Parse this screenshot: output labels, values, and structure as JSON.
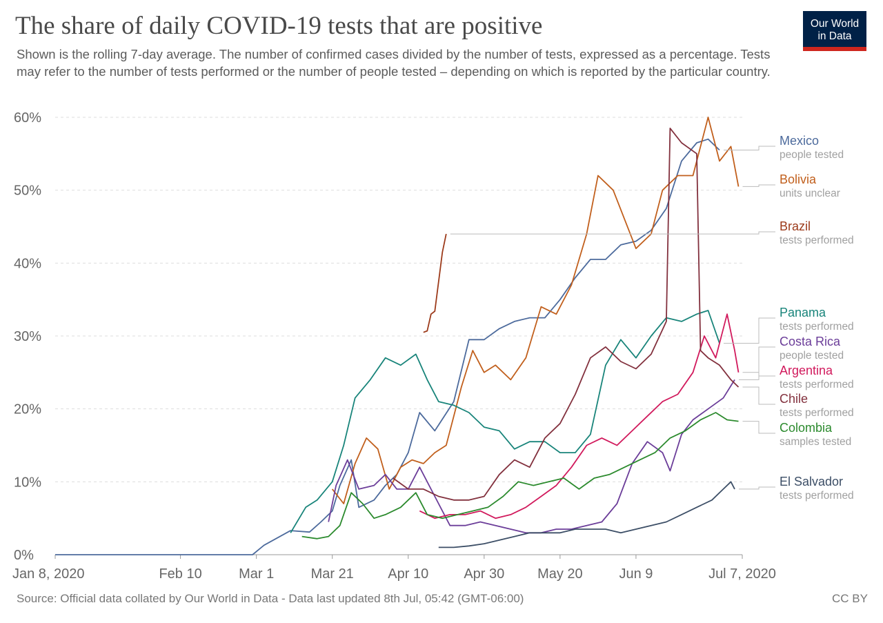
{
  "header": {
    "title": "The share of daily COVID-19 tests that are positive",
    "subtitle": "Shown is the rolling 7-day average. The number of confirmed cases divided by the number of tests, expressed as a percentage. Tests may refer to the number of tests performed or the number of people tested – depending on which is reported by the particular country.",
    "logo_line1": "Our World",
    "logo_line2": "in Data"
  },
  "footer": {
    "source": "Source: Official data collated by Our World in Data - Data last updated 8th Jul, 05:42 (GMT-06:00)",
    "license": "CC BY"
  },
  "colors": {
    "logo_bg": "#002147",
    "logo_bar": "#ce261e",
    "grid": "#dddddd"
  },
  "chart_data": {
    "type": "line",
    "title": "The share of daily COVID-19 tests that are positive",
    "xlabel": "",
    "ylabel": "",
    "x_unit": "date (2020)",
    "xlim": [
      "2020-01-08",
      "2020-07-07"
    ],
    "ylim": [
      0,
      60
    ],
    "grid": "horizontal dashed",
    "legend_placement": "right, aligned with line ends",
    "x_ticks": [
      {
        "date": "2020-01-08",
        "label": "Jan 8, 2020"
      },
      {
        "date": "2020-02-10",
        "label": "Feb 10"
      },
      {
        "date": "2020-03-01",
        "label": "Mar 1"
      },
      {
        "date": "2020-03-21",
        "label": "Mar 21"
      },
      {
        "date": "2020-04-10",
        "label": "Apr 10"
      },
      {
        "date": "2020-04-30",
        "label": "Apr 30"
      },
      {
        "date": "2020-05-20",
        "label": "May 20"
      },
      {
        "date": "2020-06-09",
        "label": "Jun 9"
      },
      {
        "date": "2020-07-07",
        "label": "Jul 7, 2020"
      }
    ],
    "y_ticks": [
      {
        "value": 0,
        "label": "0%"
      },
      {
        "value": 10,
        "label": "10%"
      },
      {
        "value": 20,
        "label": "20%"
      },
      {
        "value": 30,
        "label": "30%"
      },
      {
        "value": 40,
        "label": "40%"
      },
      {
        "value": 50,
        "label": "50%"
      },
      {
        "value": 60,
        "label": "60%"
      }
    ],
    "series": [
      {
        "name": "Mexico",
        "unit": "people tested",
        "color": "#4c6a9c",
        "points": [
          [
            "2020-01-08",
            0
          ],
          [
            "2020-02-29",
            0
          ],
          [
            "2020-03-03",
            1.3
          ],
          [
            "2020-03-10",
            3.3
          ],
          [
            "2020-03-15",
            3.1
          ],
          [
            "2020-03-18",
            4.5
          ],
          [
            "2020-03-21",
            6.0
          ],
          [
            "2020-03-23",
            9.5
          ],
          [
            "2020-03-26",
            13.0
          ],
          [
            "2020-03-28",
            6.5
          ],
          [
            "2020-04-01",
            7.5
          ],
          [
            "2020-04-04",
            9.5
          ],
          [
            "2020-04-07",
            11.0
          ],
          [
            "2020-04-10",
            14.0
          ],
          [
            "2020-04-13",
            19.5
          ],
          [
            "2020-04-17",
            17.0
          ],
          [
            "2020-04-22",
            21.0
          ],
          [
            "2020-04-26",
            29.5
          ],
          [
            "2020-04-30",
            29.5
          ],
          [
            "2020-05-04",
            31.0
          ],
          [
            "2020-05-08",
            32.0
          ],
          [
            "2020-05-12",
            32.5
          ],
          [
            "2020-05-16",
            32.5
          ],
          [
            "2020-05-20",
            35.0
          ],
          [
            "2020-05-24",
            38.0
          ],
          [
            "2020-05-28",
            40.5
          ],
          [
            "2020-06-01",
            40.5
          ],
          [
            "2020-06-05",
            42.5
          ],
          [
            "2020-06-09",
            43.0
          ],
          [
            "2020-06-13",
            44.5
          ],
          [
            "2020-06-17",
            47.5
          ],
          [
            "2020-06-21",
            54.0
          ],
          [
            "2020-06-25",
            56.5
          ],
          [
            "2020-06-28",
            57.0
          ],
          [
            "2020-07-01",
            55.5
          ]
        ]
      },
      {
        "name": "Bolivia",
        "unit": "units unclear",
        "color": "#c15f1c",
        "points": [
          [
            "2020-03-21",
            9.0
          ],
          [
            "2020-03-24",
            7.0
          ],
          [
            "2020-03-27",
            12.5
          ],
          [
            "2020-03-30",
            16.0
          ],
          [
            "2020-04-02",
            14.5
          ],
          [
            "2020-04-05",
            9.0
          ],
          [
            "2020-04-08",
            12.0
          ],
          [
            "2020-04-11",
            13.0
          ],
          [
            "2020-04-14",
            12.5
          ],
          [
            "2020-04-17",
            14.0
          ],
          [
            "2020-04-20",
            15.0
          ],
          [
            "2020-04-24",
            23.0
          ],
          [
            "2020-04-27",
            28.0
          ],
          [
            "2020-04-30",
            25.0
          ],
          [
            "2020-05-03",
            26.0
          ],
          [
            "2020-05-07",
            24.0
          ],
          [
            "2020-05-11",
            27.0
          ],
          [
            "2020-05-15",
            34.0
          ],
          [
            "2020-05-19",
            33.0
          ],
          [
            "2020-05-23",
            37.0
          ],
          [
            "2020-05-27",
            44.0
          ],
          [
            "2020-05-30",
            52.0
          ],
          [
            "2020-06-03",
            50.0
          ],
          [
            "2020-06-06",
            46.0
          ],
          [
            "2020-06-09",
            42.0
          ],
          [
            "2020-06-13",
            44.0
          ],
          [
            "2020-06-16",
            50.0
          ],
          [
            "2020-06-20",
            52.0
          ],
          [
            "2020-06-24",
            52.0
          ],
          [
            "2020-06-28",
            60.0
          ],
          [
            "2020-07-01",
            54.0
          ],
          [
            "2020-07-04",
            56.0
          ],
          [
            "2020-07-06",
            50.5
          ]
        ]
      },
      {
        "name": "Brazil",
        "unit": "tests performed",
        "color": "#9c3a1a",
        "points": [
          [
            "2020-04-14",
            30.5
          ],
          [
            "2020-04-15",
            30.7
          ],
          [
            "2020-04-16",
            33.0
          ],
          [
            "2020-04-17",
            33.4
          ],
          [
            "2020-04-19",
            41.5
          ],
          [
            "2020-04-20",
            44.0
          ]
        ]
      },
      {
        "name": "Panama",
        "unit": "tests performed",
        "color": "#18847a",
        "points": [
          [
            "2020-03-10",
            3.0
          ],
          [
            "2020-03-14",
            6.5
          ],
          [
            "2020-03-17",
            7.5
          ],
          [
            "2020-03-21",
            10.0
          ],
          [
            "2020-03-24",
            15.0
          ],
          [
            "2020-03-27",
            21.5
          ],
          [
            "2020-03-31",
            24.0
          ],
          [
            "2020-04-04",
            27.0
          ],
          [
            "2020-04-08",
            26.0
          ],
          [
            "2020-04-12",
            27.5
          ],
          [
            "2020-04-15",
            24.0
          ],
          [
            "2020-04-18",
            21.0
          ],
          [
            "2020-04-22",
            20.5
          ],
          [
            "2020-04-26",
            19.5
          ],
          [
            "2020-04-30",
            17.5
          ],
          [
            "2020-05-04",
            17.0
          ],
          [
            "2020-05-08",
            14.5
          ],
          [
            "2020-05-12",
            15.5
          ],
          [
            "2020-05-16",
            15.5
          ],
          [
            "2020-05-20",
            14.0
          ],
          [
            "2020-05-24",
            14.0
          ],
          [
            "2020-05-28",
            16.5
          ],
          [
            "2020-06-01",
            26.0
          ],
          [
            "2020-06-05",
            29.5
          ],
          [
            "2020-06-09",
            27.0
          ],
          [
            "2020-06-13",
            30.0
          ],
          [
            "2020-06-17",
            32.5
          ],
          [
            "2020-06-21",
            32.0
          ],
          [
            "2020-06-25",
            33.0
          ],
          [
            "2020-06-28",
            33.5
          ],
          [
            "2020-07-01",
            29.0
          ]
        ]
      },
      {
        "name": "Costa Rica",
        "unit": "people tested",
        "color": "#6b3d99",
        "points": [
          [
            "2020-03-20",
            4.5
          ],
          [
            "2020-03-22",
            9.5
          ],
          [
            "2020-03-25",
            13.0
          ],
          [
            "2020-03-28",
            9.0
          ],
          [
            "2020-04-01",
            9.5
          ],
          [
            "2020-04-04",
            11.0
          ],
          [
            "2020-04-07",
            9.0
          ],
          [
            "2020-04-10",
            9.0
          ],
          [
            "2020-04-13",
            12.0
          ],
          [
            "2020-04-17",
            8.0
          ],
          [
            "2020-04-21",
            4.0
          ],
          [
            "2020-04-25",
            4.0
          ],
          [
            "2020-04-29",
            4.5
          ],
          [
            "2020-05-03",
            4.0
          ],
          [
            "2020-05-07",
            3.5
          ],
          [
            "2020-05-11",
            3.0
          ],
          [
            "2020-05-15",
            3.0
          ],
          [
            "2020-05-19",
            3.5
          ],
          [
            "2020-05-23",
            3.5
          ],
          [
            "2020-05-27",
            4.0
          ],
          [
            "2020-05-31",
            4.5
          ],
          [
            "2020-06-04",
            7.0
          ],
          [
            "2020-06-08",
            12.5
          ],
          [
            "2020-06-12",
            15.5
          ],
          [
            "2020-06-16",
            14.0
          ],
          [
            "2020-06-18",
            11.5
          ],
          [
            "2020-06-21",
            16.5
          ],
          [
            "2020-06-24",
            18.5
          ],
          [
            "2020-06-28",
            20.0
          ],
          [
            "2020-07-02",
            21.5
          ],
          [
            "2020-07-05",
            24.0
          ]
        ]
      },
      {
        "name": "Argentina",
        "unit": "tests performed",
        "color": "#d1195c",
        "points": [
          [
            "2020-04-13",
            6.0
          ],
          [
            "2020-04-17",
            5.0
          ],
          [
            "2020-04-21",
            5.5
          ],
          [
            "2020-04-25",
            5.5
          ],
          [
            "2020-04-29",
            6.0
          ],
          [
            "2020-05-03",
            5.0
          ],
          [
            "2020-05-07",
            5.5
          ],
          [
            "2020-05-11",
            6.5
          ],
          [
            "2020-05-15",
            8.0
          ],
          [
            "2020-05-19",
            9.5
          ],
          [
            "2020-05-23",
            12.0
          ],
          [
            "2020-05-27",
            15.0
          ],
          [
            "2020-05-31",
            16.0
          ],
          [
            "2020-06-04",
            15.0
          ],
          [
            "2020-06-08",
            17.0
          ],
          [
            "2020-06-12",
            19.0
          ],
          [
            "2020-06-16",
            21.0
          ],
          [
            "2020-06-20",
            22.0
          ],
          [
            "2020-06-24",
            25.0
          ],
          [
            "2020-06-27",
            30.0
          ],
          [
            "2020-06-30",
            27.0
          ],
          [
            "2020-07-03",
            33.0
          ],
          [
            "2020-07-05",
            28.0
          ],
          [
            "2020-07-06",
            25.0
          ]
        ]
      },
      {
        "name": "Chile",
        "unit": "tests performed",
        "color": "#82303d",
        "points": [
          [
            "2020-04-06",
            10.5
          ],
          [
            "2020-04-10",
            9.0
          ],
          [
            "2020-04-14",
            9.0
          ],
          [
            "2020-04-18",
            8.0
          ],
          [
            "2020-04-22",
            7.5
          ],
          [
            "2020-04-26",
            7.5
          ],
          [
            "2020-04-30",
            8.0
          ],
          [
            "2020-05-04",
            11.0
          ],
          [
            "2020-05-08",
            13.0
          ],
          [
            "2020-05-12",
            12.0
          ],
          [
            "2020-05-16",
            16.0
          ],
          [
            "2020-05-20",
            18.0
          ],
          [
            "2020-05-24",
            22.0
          ],
          [
            "2020-05-28",
            27.0
          ],
          [
            "2020-06-01",
            28.5
          ],
          [
            "2020-06-05",
            26.5
          ],
          [
            "2020-06-09",
            25.5
          ],
          [
            "2020-06-13",
            27.5
          ],
          [
            "2020-06-17",
            32.0
          ],
          [
            "2020-06-18",
            58.5
          ],
          [
            "2020-06-21",
            56.5
          ],
          [
            "2020-06-25",
            55.0
          ],
          [
            "2020-06-26",
            28.0
          ],
          [
            "2020-06-28",
            27.0
          ],
          [
            "2020-07-01",
            26.0
          ],
          [
            "2020-07-04",
            24.0
          ],
          [
            "2020-07-06",
            23.0
          ]
        ]
      },
      {
        "name": "Colombia",
        "unit": "samples tested",
        "color": "#2b8a2d",
        "points": [
          [
            "2020-03-13",
            2.5
          ],
          [
            "2020-03-17",
            2.2
          ],
          [
            "2020-03-20",
            2.5
          ],
          [
            "2020-03-23",
            4.0
          ],
          [
            "2020-03-26",
            8.5
          ],
          [
            "2020-03-29",
            7.0
          ],
          [
            "2020-04-01",
            5.0
          ],
          [
            "2020-04-04",
            5.5
          ],
          [
            "2020-04-08",
            6.5
          ],
          [
            "2020-04-12",
            8.5
          ],
          [
            "2020-04-15",
            5.5
          ],
          [
            "2020-04-19",
            5.0
          ],
          [
            "2020-04-23",
            5.5
          ],
          [
            "2020-04-27",
            6.0
          ],
          [
            "2020-05-01",
            6.5
          ],
          [
            "2020-05-05",
            8.0
          ],
          [
            "2020-05-09",
            10.0
          ],
          [
            "2020-05-13",
            9.5
          ],
          [
            "2020-05-17",
            10.0
          ],
          [
            "2020-05-21",
            10.5
          ],
          [
            "2020-05-25",
            9.0
          ],
          [
            "2020-05-29",
            10.5
          ],
          [
            "2020-06-02",
            11.0
          ],
          [
            "2020-06-06",
            12.0
          ],
          [
            "2020-06-10",
            13.0
          ],
          [
            "2020-06-14",
            14.0
          ],
          [
            "2020-06-18",
            16.0
          ],
          [
            "2020-06-22",
            17.0
          ],
          [
            "2020-06-26",
            18.5
          ],
          [
            "2020-06-30",
            19.5
          ],
          [
            "2020-07-03",
            18.5
          ],
          [
            "2020-07-06",
            18.3
          ]
        ]
      },
      {
        "name": "El Salvador",
        "unit": "tests performed",
        "color": "#3c4e66",
        "points": [
          [
            "2020-04-18",
            1.0
          ],
          [
            "2020-04-22",
            1.0
          ],
          [
            "2020-04-26",
            1.2
          ],
          [
            "2020-04-30",
            1.5
          ],
          [
            "2020-05-04",
            2.0
          ],
          [
            "2020-05-08",
            2.5
          ],
          [
            "2020-05-12",
            3.0
          ],
          [
            "2020-05-16",
            3.0
          ],
          [
            "2020-05-20",
            3.0
          ],
          [
            "2020-05-24",
            3.5
          ],
          [
            "2020-05-28",
            3.5
          ],
          [
            "2020-06-01",
            3.5
          ],
          [
            "2020-06-05",
            3.0
          ],
          [
            "2020-06-09",
            3.5
          ],
          [
            "2020-06-13",
            4.0
          ],
          [
            "2020-06-17",
            4.5
          ],
          [
            "2020-06-21",
            5.5
          ],
          [
            "2020-06-25",
            6.5
          ],
          [
            "2020-06-29",
            7.5
          ],
          [
            "2020-07-02",
            9.0
          ],
          [
            "2020-07-04",
            10.0
          ],
          [
            "2020-07-05",
            9.0
          ]
        ]
      }
    ]
  }
}
